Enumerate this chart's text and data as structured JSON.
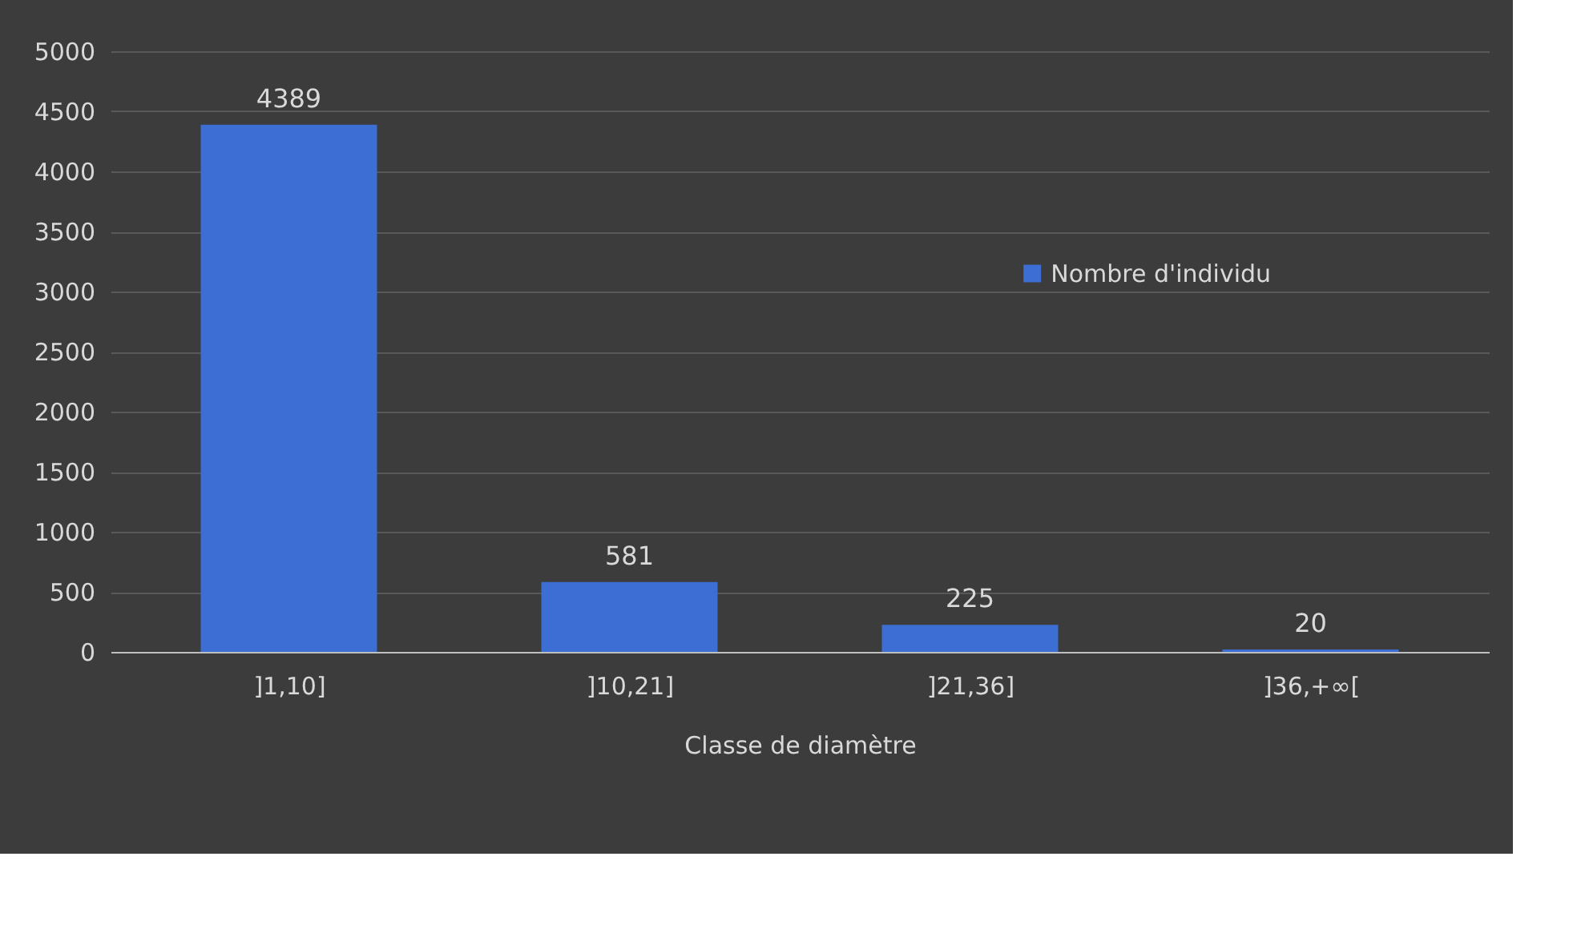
{
  "chart_data": {
    "type": "bar",
    "xlabel": "Classe de diamètre",
    "categories": [
      "]1,10]",
      "]10,21]",
      "]21,36]",
      "]36,+∞["
    ],
    "series": [
      {
        "name": "Nombre d'individu",
        "color": "#3d6ed3",
        "values": [
          4389,
          581,
          225,
          20
        ]
      }
    ],
    "ylim": [
      0,
      5000
    ],
    "yticks": [
      0,
      500,
      1000,
      1500,
      2000,
      2500,
      3000,
      3500,
      4000,
      4500,
      5000
    ],
    "grid": "y",
    "legend": "right",
    "data_labels": true
  }
}
